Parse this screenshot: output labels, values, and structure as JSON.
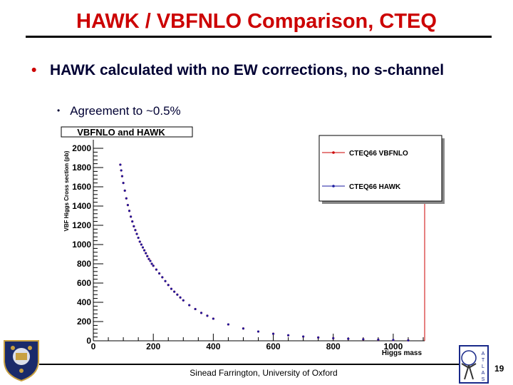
{
  "slide": {
    "title": "HAWK / VBFNLO Comparison, CTEQ",
    "bullet1": "HAWK calculated with no EW corrections, no s-channel",
    "bullet2": "Agreement to ~0.5%",
    "footer": "Sinead Farrington, University of Oxford",
    "page_number": "19",
    "bullet_glyph": "•"
  },
  "logos": {
    "left": "oxford-crest-icon",
    "right": "atlas-logo-icon"
  },
  "colors": {
    "title": "#cc0000",
    "body_text": "#000033",
    "vbfnlo": "#cc0000",
    "hawk": "#1a1aa0"
  },
  "chart_data": {
    "type": "scatter",
    "title": "VBFNLO and HAWK",
    "xlabel": "Higgs mass",
    "ylabel": "VBF Higgs Cross section (pb)",
    "xlim": [
      0,
      1100
    ],
    "ylim": [
      0,
      2000
    ],
    "xticks": [
      0,
      200,
      400,
      600,
      800,
      1000
    ],
    "yticks": [
      0,
      200,
      400,
      600,
      800,
      1000,
      1200,
      1400,
      1600,
      1800,
      2000
    ],
    "legend_position": "top-right",
    "series": [
      {
        "name": "CTEQ66 VBFNLO",
        "color": "#cc0000",
        "x": [
          90,
          93,
          96,
          100,
          105,
          110,
          115,
          120,
          125,
          130,
          135,
          140,
          145,
          150,
          155,
          160,
          165,
          170,
          175,
          180,
          185,
          190,
          195,
          200,
          210,
          220,
          230,
          240,
          250,
          260,
          270,
          280,
          290,
          300,
          320,
          340,
          360,
          380,
          400,
          450,
          500,
          550,
          600,
          650,
          700,
          750,
          800,
          850,
          900,
          950,
          1000,
          1050
        ],
        "y": [
          1830,
          1770,
          1710,
          1640,
          1560,
          1480,
          1410,
          1350,
          1290,
          1240,
          1190,
          1150,
          1110,
          1070,
          1030,
          1000,
          970,
          940,
          910,
          880,
          850,
          830,
          800,
          780,
          740,
          700,
          660,
          620,
          580,
          540,
          510,
          480,
          450,
          420,
          370,
          330,
          290,
          260,
          230,
          170,
          128,
          96,
          73,
          57,
          44,
          34,
          27,
          21,
          16,
          12,
          8,
          5
        ]
      },
      {
        "name": "CTEQ66 HAWK",
        "color": "#1a1aa0",
        "x": [
          90,
          93,
          96,
          100,
          105,
          110,
          115,
          120,
          125,
          130,
          135,
          140,
          145,
          150,
          155,
          160,
          165,
          170,
          175,
          180,
          185,
          190,
          195,
          200,
          210,
          220,
          230,
          240,
          250,
          260,
          270,
          280,
          290,
          300,
          320,
          340,
          360,
          380,
          400,
          450,
          500,
          550,
          600,
          650,
          700,
          750,
          800,
          850,
          900,
          950,
          1000,
          1050
        ],
        "y": [
          1830,
          1770,
          1710,
          1640,
          1560,
          1480,
          1410,
          1350,
          1290,
          1240,
          1190,
          1150,
          1110,
          1070,
          1030,
          1000,
          970,
          940,
          910,
          880,
          850,
          830,
          800,
          780,
          740,
          700,
          660,
          620,
          580,
          540,
          510,
          480,
          450,
          420,
          370,
          330,
          290,
          260,
          230,
          170,
          128,
          96,
          73,
          57,
          44,
          34,
          27,
          21,
          16,
          12,
          8,
          5
        ]
      }
    ]
  }
}
